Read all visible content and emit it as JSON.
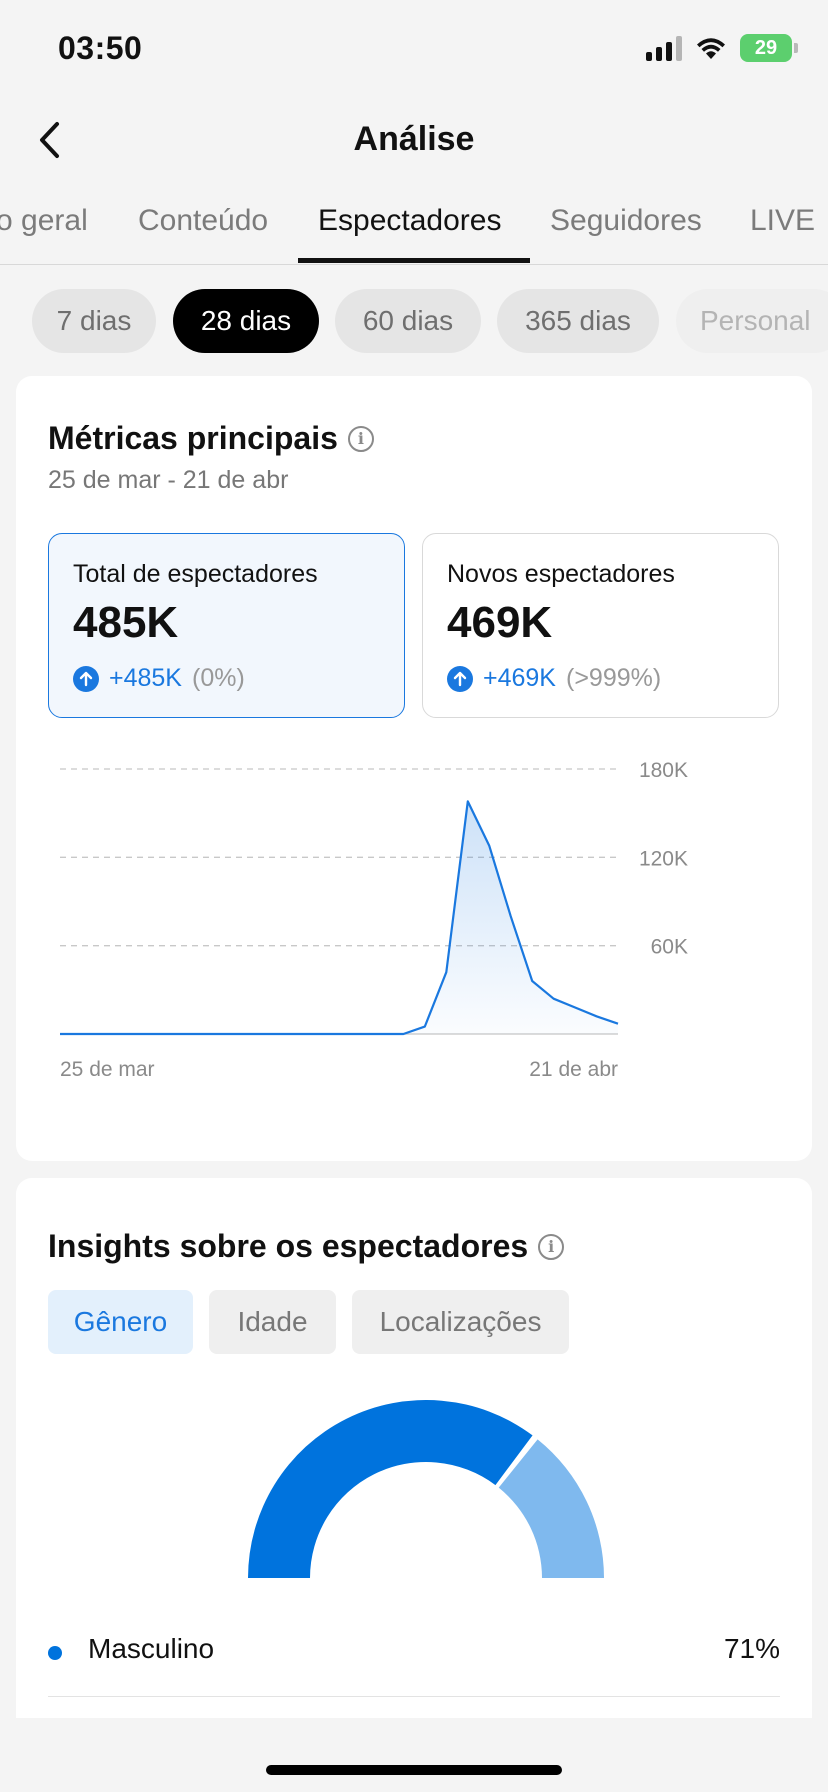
{
  "status_bar": {
    "time": "03:50",
    "battery": "29"
  },
  "header": {
    "title": "Análise"
  },
  "tabs": [
    {
      "label": "o geral"
    },
    {
      "label": "Conteúdo"
    },
    {
      "label": "Espectadores",
      "active": true
    },
    {
      "label": "Seguidores"
    },
    {
      "label": "LIVE"
    }
  ],
  "date_ranges": [
    {
      "label": "7 dias"
    },
    {
      "label": "28 dias",
      "active": true
    },
    {
      "label": "60 dias"
    },
    {
      "label": "365 dias"
    },
    {
      "label": "Personal"
    }
  ],
  "key_metrics": {
    "title": "Métricas principais",
    "date_range": "25 de mar - 21 de abr",
    "cards": [
      {
        "label": "Total de espectadores",
        "value": "485K",
        "change": "+485K",
        "change_pct": "(0%)",
        "selected": true
      },
      {
        "label": "Novos espectadores",
        "value": "469K",
        "change": "+469K",
        "change_pct": "(>999%)",
        "selected": false
      }
    ]
  },
  "chart_data": {
    "type": "area",
    "series": [
      {
        "values": [
          0,
          0,
          0,
          0,
          0,
          0,
          0,
          0,
          0,
          0,
          0,
          0,
          0,
          0,
          0,
          0,
          0,
          5000,
          42000,
          158000,
          128000,
          80000,
          36000,
          24000,
          18000,
          12000,
          7000
        ]
      }
    ],
    "x_labels": [
      "25 de mar",
      "21 de abr"
    ],
    "y_ticks": [
      "180K",
      "120K",
      "60K"
    ],
    "ylim": [
      0,
      180000
    ],
    "grid": true,
    "line_color": "#1a78df"
  },
  "insights": {
    "title": "Insights sobre os espectadores",
    "tabs": [
      {
        "label": "Gênero",
        "active": true
      },
      {
        "label": "Idade"
      },
      {
        "label": "Localizações"
      }
    ],
    "gender": [
      {
        "label": "Masculino",
        "value": "71%",
        "share": 0.71,
        "color": "#0073dd"
      },
      {
        "share": 0.29,
        "color": "#7fb9ee"
      }
    ]
  }
}
